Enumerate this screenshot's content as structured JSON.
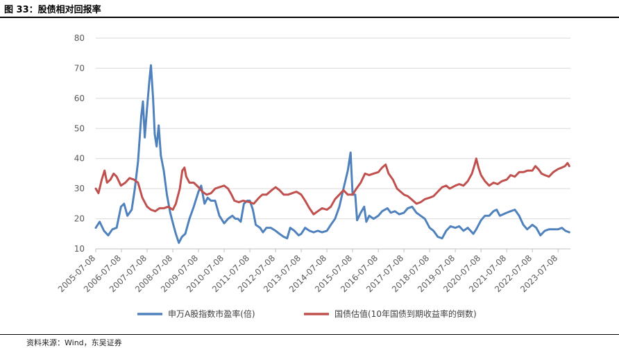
{
  "figure": {
    "title": "图 33：股债相对回报率",
    "source": "资料来源：Wind，东吴证券"
  },
  "chart_data": {
    "type": "line",
    "title": "",
    "xlabel": "",
    "ylabel": "",
    "ylim": [
      10,
      80
    ],
    "yticks": [
      10,
      20,
      30,
      40,
      50,
      60,
      70,
      80
    ],
    "xlim": [
      "2005-07-08",
      "2023-12-31"
    ],
    "xticks": [
      "2005-07-08",
      "2006-07-08",
      "2007-07-08",
      "2008-07-08",
      "2009-07-08",
      "2010-07-08",
      "2011-07-08",
      "2012-07-08",
      "2013-07-08",
      "2014-07-08",
      "2015-07-08",
      "2016-07-08",
      "2017-07-08",
      "2018-07-08",
      "2019-07-08",
      "2020-07-08",
      "2021-07-08",
      "2022-07-08",
      "2023-07-08"
    ],
    "grid": "horizontal",
    "legend_position": "bottom",
    "series": [
      {
        "name": "申万A股指数市盈率(倍)",
        "color": "#4F81BD",
        "points": [
          [
            "2005-07-08",
            17.0
          ],
          [
            "2005-09-01",
            19.0
          ],
          [
            "2005-11-01",
            16.0
          ],
          [
            "2006-01-01",
            14.5
          ],
          [
            "2006-03-01",
            16.5
          ],
          [
            "2006-05-01",
            17.0
          ],
          [
            "2006-07-01",
            24.0
          ],
          [
            "2006-08-15",
            25.0
          ],
          [
            "2006-10-01",
            21.0
          ],
          [
            "2006-12-01",
            23.0
          ],
          [
            "2007-01-15",
            30.0
          ],
          [
            "2007-03-01",
            39.0
          ],
          [
            "2007-04-15",
            54.0
          ],
          [
            "2007-05-10",
            59.0
          ],
          [
            "2007-06-05",
            47.0
          ],
          [
            "2007-07-08",
            57.0
          ],
          [
            "2007-08-10",
            66.0
          ],
          [
            "2007-09-01",
            71.0
          ],
          [
            "2007-10-01",
            60.0
          ],
          [
            "2007-10-25",
            48.0
          ],
          [
            "2007-11-20",
            44.0
          ],
          [
            "2007-12-20",
            51.0
          ],
          [
            "2008-01-20",
            41.0
          ],
          [
            "2008-03-01",
            36.0
          ],
          [
            "2008-04-15",
            28.0
          ],
          [
            "2008-06-01",
            22.0
          ],
          [
            "2008-07-15",
            18.0
          ],
          [
            "2008-08-20",
            15.0
          ],
          [
            "2008-10-01",
            12.0
          ],
          [
            "2008-11-15",
            14.0
          ],
          [
            "2009-01-01",
            15.0
          ],
          [
            "2009-03-01",
            20.0
          ],
          [
            "2009-05-01",
            24.0
          ],
          [
            "2009-07-08",
            29.0
          ],
          [
            "2009-08-15",
            31.0
          ],
          [
            "2009-10-01",
            25.0
          ],
          [
            "2009-11-15",
            27.0
          ],
          [
            "2010-01-01",
            26.0
          ],
          [
            "2010-03-01",
            26.0
          ],
          [
            "2010-05-01",
            21.0
          ],
          [
            "2010-07-08",
            18.5
          ],
          [
            "2010-09-01",
            20.0
          ],
          [
            "2010-11-01",
            21.0
          ],
          [
            "2010-12-15",
            20.0
          ],
          [
            "2011-01-20",
            20.0
          ],
          [
            "2011-03-01",
            19.0
          ],
          [
            "2011-04-15",
            25.0
          ],
          [
            "2011-06-01",
            26.0
          ],
          [
            "2011-07-08",
            26.0
          ],
          [
            "2011-08-20",
            23.0
          ],
          [
            "2011-10-01",
            18.0
          ],
          [
            "2011-12-01",
            17.0
          ],
          [
            "2012-01-10",
            15.5
          ],
          [
            "2012-03-01",
            17.0
          ],
          [
            "2012-05-01",
            17.0
          ],
          [
            "2012-07-08",
            16.0
          ],
          [
            "2012-09-01",
            15.0
          ],
          [
            "2012-11-01",
            14.0
          ],
          [
            "2012-12-20",
            13.5
          ],
          [
            "2013-02-01",
            17.0
          ],
          [
            "2013-04-01",
            16.0
          ],
          [
            "2013-06-01",
            14.5
          ],
          [
            "2013-07-08",
            15.0
          ],
          [
            "2013-09-01",
            17.0
          ],
          [
            "2013-11-01",
            16.0
          ],
          [
            "2014-01-01",
            15.5
          ],
          [
            "2014-03-01",
            16.0
          ],
          [
            "2014-05-01",
            15.5
          ],
          [
            "2014-07-08",
            16.0
          ],
          [
            "2014-09-01",
            18.0
          ],
          [
            "2014-11-01",
            20.0
          ],
          [
            "2015-01-01",
            24.0
          ],
          [
            "2015-03-01",
            30.0
          ],
          [
            "2015-05-01",
            36.0
          ],
          [
            "2015-06-10",
            42.0
          ],
          [
            "2015-07-08",
            28.0
          ],
          [
            "2015-08-15",
            28.0
          ],
          [
            "2015-09-10",
            19.5
          ],
          [
            "2015-11-01",
            22.0
          ],
          [
            "2015-12-20",
            24.0
          ],
          [
            "2016-01-20",
            19.0
          ],
          [
            "2016-03-01",
            21.0
          ],
          [
            "2016-05-01",
            20.0
          ],
          [
            "2016-07-08",
            21.0
          ],
          [
            "2016-09-01",
            22.5
          ],
          [
            "2016-11-15",
            23.5
          ],
          [
            "2017-01-01",
            22.0
          ],
          [
            "2017-03-01",
            22.5
          ],
          [
            "2017-05-01",
            21.5
          ],
          [
            "2017-07-08",
            22.0
          ],
          [
            "2017-09-01",
            23.5
          ],
          [
            "2017-11-01",
            24.0
          ],
          [
            "2018-01-01",
            22.0
          ],
          [
            "2018-03-01",
            21.0
          ],
          [
            "2018-05-01",
            20.0
          ],
          [
            "2018-07-08",
            17.0
          ],
          [
            "2018-09-01",
            16.0
          ],
          [
            "2018-11-01",
            14.0
          ],
          [
            "2019-01-01",
            13.5
          ],
          [
            "2019-03-01",
            16.0
          ],
          [
            "2019-05-01",
            17.5
          ],
          [
            "2019-07-08",
            17.0
          ],
          [
            "2019-09-01",
            17.5
          ],
          [
            "2019-11-01",
            16.0
          ],
          [
            "2020-01-01",
            17.0
          ],
          [
            "2020-03-20",
            15.0
          ],
          [
            "2020-05-01",
            16.5
          ],
          [
            "2020-07-08",
            19.5
          ],
          [
            "2020-09-01",
            21.0
          ],
          [
            "2020-11-01",
            21.0
          ],
          [
            "2021-01-01",
            22.5
          ],
          [
            "2021-02-15",
            23.0
          ],
          [
            "2021-04-01",
            21.0
          ],
          [
            "2021-07-08",
            22.0
          ],
          [
            "2021-09-01",
            22.5
          ],
          [
            "2021-11-01",
            23.0
          ],
          [
            "2022-01-01",
            21.0
          ],
          [
            "2022-03-01",
            18.0
          ],
          [
            "2022-04-25",
            16.5
          ],
          [
            "2022-07-08",
            18.0
          ],
          [
            "2022-09-01",
            17.0
          ],
          [
            "2022-10-31",
            14.5
          ],
          [
            "2023-01-01",
            16.0
          ],
          [
            "2023-03-01",
            16.5
          ],
          [
            "2023-05-01",
            16.5
          ],
          [
            "2023-07-08",
            16.5
          ],
          [
            "2023-09-01",
            17.0
          ],
          [
            "2023-10-20",
            16.0
          ],
          [
            "2023-12-15",
            15.5
          ]
        ]
      },
      {
        "name": "国债估值(10年国债到期收益率的倒数)",
        "color": "#C0504D",
        "points": [
          [
            "2005-07-08",
            30.0
          ],
          [
            "2005-08-15",
            28.5
          ],
          [
            "2005-10-01",
            33.0
          ],
          [
            "2005-11-10",
            36.0
          ],
          [
            "2005-12-15",
            32.0
          ],
          [
            "2006-02-01",
            33.0
          ],
          [
            "2006-03-20",
            35.0
          ],
          [
            "2006-05-01",
            34.0
          ],
          [
            "2006-07-01",
            31.0
          ],
          [
            "2006-09-01",
            32.0
          ],
          [
            "2006-11-01",
            33.5
          ],
          [
            "2007-01-01",
            33.0
          ],
          [
            "2007-03-01",
            32.0
          ],
          [
            "2007-05-01",
            27.0
          ],
          [
            "2007-07-08",
            24.0
          ],
          [
            "2007-09-01",
            23.0
          ],
          [
            "2007-11-01",
            22.5
          ],
          [
            "2008-01-01",
            23.5
          ],
          [
            "2008-03-01",
            23.5
          ],
          [
            "2008-05-01",
            24.0
          ],
          [
            "2008-07-08",
            23.0
          ],
          [
            "2008-08-20",
            25.0
          ],
          [
            "2008-10-15",
            30.0
          ],
          [
            "2008-11-20",
            36.0
          ],
          [
            "2008-12-20",
            37.0
          ],
          [
            "2009-01-15",
            34.0
          ],
          [
            "2009-03-01",
            32.0
          ],
          [
            "2009-05-01",
            32.0
          ],
          [
            "2009-07-08",
            30.5
          ],
          [
            "2009-09-01",
            29.0
          ],
          [
            "2009-11-01",
            28.0
          ],
          [
            "2010-01-01",
            28.5
          ],
          [
            "2010-03-01",
            30.0
          ],
          [
            "2010-05-01",
            30.5
          ],
          [
            "2010-07-08",
            31.0
          ],
          [
            "2010-09-01",
            30.0
          ],
          [
            "2010-10-20",
            28.0
          ],
          [
            "2010-12-01",
            26.0
          ],
          [
            "2011-02-01",
            25.5
          ],
          [
            "2011-04-01",
            26.0
          ],
          [
            "2011-07-08",
            25.5
          ],
          [
            "2011-09-01",
            25.0
          ],
          [
            "2011-11-15",
            27.0
          ],
          [
            "2012-01-01",
            28.0
          ],
          [
            "2012-03-01",
            28.0
          ],
          [
            "2012-05-15",
            29.5
          ],
          [
            "2012-07-08",
            30.5
          ],
          [
            "2012-09-01",
            29.5
          ],
          [
            "2012-11-01",
            28.0
          ],
          [
            "2013-01-01",
            28.0
          ],
          [
            "2013-03-01",
            28.5
          ],
          [
            "2013-05-01",
            29.0
          ],
          [
            "2013-07-08",
            28.0
          ],
          [
            "2013-09-01",
            26.0
          ],
          [
            "2013-11-01",
            23.5
          ],
          [
            "2013-12-31",
            21.5
          ],
          [
            "2014-03-01",
            22.5
          ],
          [
            "2014-05-01",
            23.5
          ],
          [
            "2014-07-08",
            23.0
          ],
          [
            "2014-09-01",
            24.0
          ],
          [
            "2014-11-01",
            26.5
          ],
          [
            "2015-01-01",
            28.0
          ],
          [
            "2015-03-01",
            29.5
          ],
          [
            "2015-05-01",
            28.0
          ],
          [
            "2015-07-08",
            28.0
          ],
          [
            "2015-09-01",
            30.0
          ],
          [
            "2015-11-01",
            32.0
          ],
          [
            "2016-01-01",
            35.0
          ],
          [
            "2016-03-01",
            34.5
          ],
          [
            "2016-05-01",
            35.0
          ],
          [
            "2016-07-08",
            35.5
          ],
          [
            "2016-09-01",
            37.0
          ],
          [
            "2016-10-20",
            38.0
          ],
          [
            "2016-12-01",
            35.0
          ],
          [
            "2017-02-01",
            33.0
          ],
          [
            "2017-04-01",
            30.0
          ],
          [
            "2017-07-08",
            28.0
          ],
          [
            "2017-09-01",
            27.5
          ],
          [
            "2017-11-15",
            26.0
          ],
          [
            "2018-01-01",
            25.0
          ],
          [
            "2018-03-01",
            25.5
          ],
          [
            "2018-05-01",
            26.5
          ],
          [
            "2018-07-08",
            27.0
          ],
          [
            "2018-09-01",
            27.5
          ],
          [
            "2018-11-01",
            29.0
          ],
          [
            "2019-01-01",
            30.5
          ],
          [
            "2019-03-01",
            31.0
          ],
          [
            "2019-04-20",
            30.0
          ],
          [
            "2019-07-08",
            31.0
          ],
          [
            "2019-09-01",
            31.5
          ],
          [
            "2019-11-01",
            31.0
          ],
          [
            "2020-01-01",
            32.5
          ],
          [
            "2020-03-01",
            35.0
          ],
          [
            "2020-04-15",
            38.5
          ],
          [
            "2020-05-01",
            40.0
          ],
          [
            "2020-06-01",
            37.0
          ],
          [
            "2020-07-08",
            34.5
          ],
          [
            "2020-09-01",
            32.5
          ],
          [
            "2020-11-01",
            31.0
          ],
          [
            "2021-01-01",
            32.0
          ],
          [
            "2021-03-01",
            31.5
          ],
          [
            "2021-05-01",
            32.5
          ],
          [
            "2021-07-08",
            33.0
          ],
          [
            "2021-09-01",
            34.5
          ],
          [
            "2021-11-01",
            34.0
          ],
          [
            "2022-01-01",
            35.5
          ],
          [
            "2022-03-01",
            35.5
          ],
          [
            "2022-05-01",
            36.0
          ],
          [
            "2022-07-08",
            36.0
          ],
          [
            "2022-08-20",
            37.5
          ],
          [
            "2022-10-01",
            36.5
          ],
          [
            "2022-11-15",
            35.0
          ],
          [
            "2023-01-01",
            34.5
          ],
          [
            "2023-03-01",
            34.0
          ],
          [
            "2023-05-01",
            35.5
          ],
          [
            "2023-07-08",
            36.5
          ],
          [
            "2023-09-01",
            37.0
          ],
          [
            "2023-10-15",
            37.5
          ],
          [
            "2023-11-20",
            38.5
          ],
          [
            "2023-12-15",
            37.5
          ]
        ]
      }
    ]
  }
}
